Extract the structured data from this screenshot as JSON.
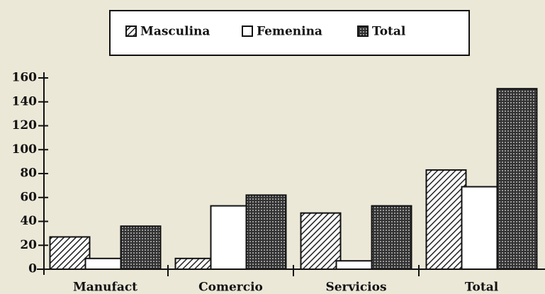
{
  "chart_data": {
    "type": "bar",
    "categories": [
      "Manufact",
      "Comercio",
      "Servicios",
      "Total"
    ],
    "series": [
      {
        "name": "Masculina",
        "color": "#222222",
        "pattern": "diagonal",
        "values": [
          27,
          9,
          47,
          83
        ]
      },
      {
        "name": "Femenina",
        "color": "#ffffff",
        "pattern": "none",
        "values": [
          9,
          53,
          7,
          69
        ]
      },
      {
        "name": "Total",
        "color": "#222222",
        "pattern": "crosshatch",
        "values": [
          36,
          62,
          53,
          151
        ]
      }
    ],
    "ylim": [
      0,
      160
    ],
    "yticks": [
      0,
      20,
      40,
      60,
      80,
      100,
      120,
      140,
      160
    ],
    "grid": false,
    "legend": "top"
  }
}
